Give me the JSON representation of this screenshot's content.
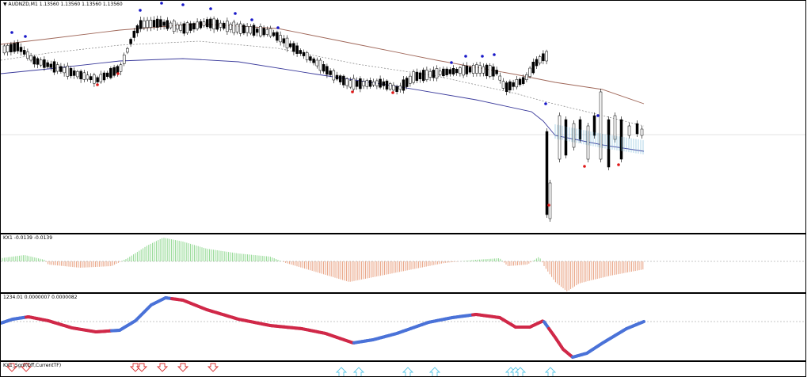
{
  "main_chart": {
    "title": "AUDNZD,M1",
    "ohlc": "1.13560 1.13560 1.13560 1.13560",
    "arrow_icon": "triangle-down-icon"
  },
  "kx_pane": {
    "label": "KX1",
    "values": "-0.0139 -0.0139"
  },
  "osc_pane": {
    "label": "1234.01",
    "values": "0.0000007 0.0000082"
  },
  "signal_pane": {
    "label": "KX1_Sgnl(Off,CurrentTF)"
  },
  "colors": {
    "bull_hist": "#90d890",
    "bear_hist": "#e8a080",
    "osc_up": "#4a72d8",
    "osc_down": "#d02848",
    "upper_band": "#a0685a",
    "lower_band": "#3c3c9c",
    "mid_line": "#808080",
    "dot_blue": "#1818c8",
    "dot_red": "#e01818",
    "arrow_up": "#5cc8e8",
    "arrow_down": "#d83030"
  }
}
